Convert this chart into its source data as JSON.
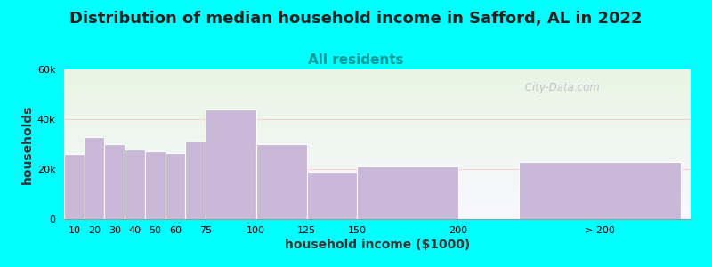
{
  "title": "Distribution of median household income in Safford, AL in 2022",
  "subtitle": "All residents",
  "xlabel": "household income ($1000)",
  "ylabel": "households",
  "background_color": "#00FFFF",
  "plot_bg_gradient_top": "#e8f5e2",
  "plot_bg_gradient_bottom": "#f8f8ff",
  "bar_color": "#c9b8d8",
  "bar_edge_color": "#ffffff",
  "bar_values": [
    26000,
    33000,
    30000,
    28000,
    27000,
    26500,
    31000,
    44000,
    30000,
    19000,
    21000,
    23000
  ],
  "bar_widths": [
    10,
    10,
    10,
    10,
    10,
    10,
    15,
    25,
    25,
    25,
    50,
    80
  ],
  "bar_lefts": [
    5,
    15,
    25,
    35,
    45,
    55,
    65,
    75,
    100,
    125,
    150,
    230
  ],
  "ylim": [
    0,
    60000
  ],
  "yticks": [
    0,
    20000,
    40000,
    60000
  ],
  "xtick_positions": [
    10,
    20,
    30,
    40,
    50,
    60,
    75,
    100,
    125,
    150,
    200,
    270
  ],
  "xtick_labels": [
    "10",
    "20",
    "30",
    "40",
    "50",
    "60",
    "75",
    "100",
    "125",
    "150",
    "200",
    "> 200"
  ],
  "watermark": " City-Data.com",
  "title_fontsize": 13,
  "subtitle_fontsize": 11,
  "axis_label_fontsize": 10,
  "tick_fontsize": 8,
  "title_color": "#222222",
  "subtitle_color": "#009999",
  "axis_label_color": "#333333",
  "gridline_color": "#ffcccc",
  "watermark_color": "#bbbbcc"
}
